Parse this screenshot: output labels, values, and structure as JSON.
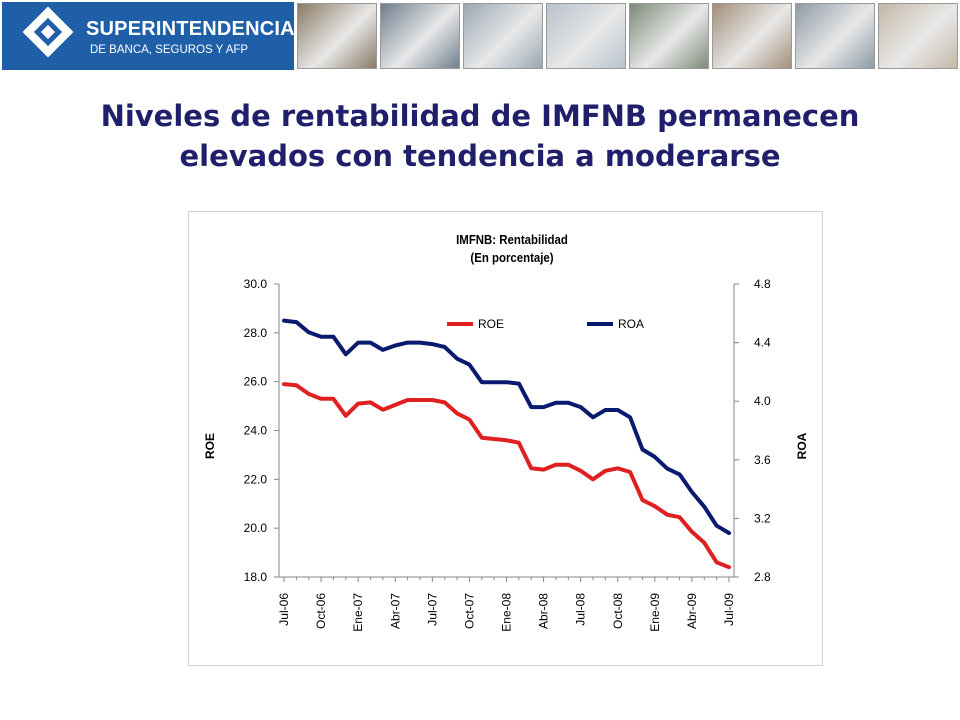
{
  "header": {
    "logo_name": "SUPERINTENDENCIA",
    "logo_subtitle": "DE BANCA, SEGUROS Y AFP",
    "photo_colors": [
      "#8a7a66",
      "#6f7f8e",
      "#9aa7b3",
      "#b8c2cc",
      "#7d8a7a",
      "#a38f7a",
      "#8e9aa6",
      "#c4b8a6"
    ]
  },
  "title": {
    "line1": "Niveles de rentabilidad de IMFNB permanecen",
    "line2": "elevados con tendencia a moderarse"
  },
  "chart_data": {
    "type": "line",
    "title": "IMFNB: Rentabilidad",
    "subtitle": "(En porcentaje)",
    "ylabel_left": "ROE",
    "ylabel_right": "ROA",
    "ylim_left": [
      18.0,
      30.0
    ],
    "ylim_right": [
      2.8,
      4.8
    ],
    "yticks_left": [
      "18.0",
      "20.0",
      "22.0",
      "24.0",
      "26.0",
      "28.0",
      "30.0"
    ],
    "yticks_right": [
      "2.8",
      "3.2",
      "3.6",
      "4.0",
      "4.4",
      "4.8"
    ],
    "x_ticks": [
      "Jul-06",
      "Oct-06",
      "Ene-07",
      "Abr-07",
      "Jul-07",
      "Oct-07",
      "Ene-08",
      "Abr-08",
      "Jul-08",
      "Oct-08",
      "Ene-09",
      "Abr-09",
      "Jul-09"
    ],
    "x": [
      "Jul-06",
      "Ago-06",
      "Set-06",
      "Oct-06",
      "Nov-06",
      "Dic-06",
      "Ene-07",
      "Feb-07",
      "Mar-07",
      "Abr-07",
      "May-07",
      "Jun-07",
      "Jul-07",
      "Ago-07",
      "Set-07",
      "Oct-07",
      "Nov-07",
      "Dic-07",
      "Ene-08",
      "Feb-08",
      "Mar-08",
      "Abr-08",
      "May-08",
      "Jun-08",
      "Jul-08",
      "Ago-08",
      "Set-08",
      "Oct-08",
      "Nov-08",
      "Dic-08",
      "Ene-09",
      "Feb-09",
      "Mar-09",
      "Abr-09",
      "May-09",
      "Jun-09",
      "Jul-09"
    ],
    "legend_position": "top",
    "grid": false,
    "series": [
      {
        "name": "ROE",
        "axis": "left",
        "color": "#e02020",
        "values": [
          25.9,
          25.85,
          25.5,
          25.3,
          25.3,
          24.6,
          25.1,
          25.15,
          24.85,
          25.05,
          25.25,
          25.25,
          25.25,
          25.15,
          24.7,
          24.45,
          23.7,
          23.65,
          23.6,
          23.5,
          22.45,
          22.4,
          22.6,
          22.6,
          22.35,
          22.0,
          22.35,
          22.45,
          22.3,
          21.15,
          20.9,
          20.55,
          20.45,
          19.85,
          19.4,
          18.6,
          18.4
        ]
      },
      {
        "name": "ROA",
        "axis": "right",
        "color": "#0a1a6e",
        "values": [
          4.55,
          4.54,
          4.47,
          4.44,
          4.44,
          4.32,
          4.4,
          4.4,
          4.35,
          4.38,
          4.4,
          4.4,
          4.39,
          4.37,
          4.29,
          4.25,
          4.13,
          4.13,
          4.13,
          4.12,
          3.96,
          3.96,
          3.99,
          3.99,
          3.96,
          3.89,
          3.94,
          3.94,
          3.89,
          3.67,
          3.62,
          3.54,
          3.5,
          3.38,
          3.28,
          3.15,
          3.1
        ]
      }
    ]
  }
}
